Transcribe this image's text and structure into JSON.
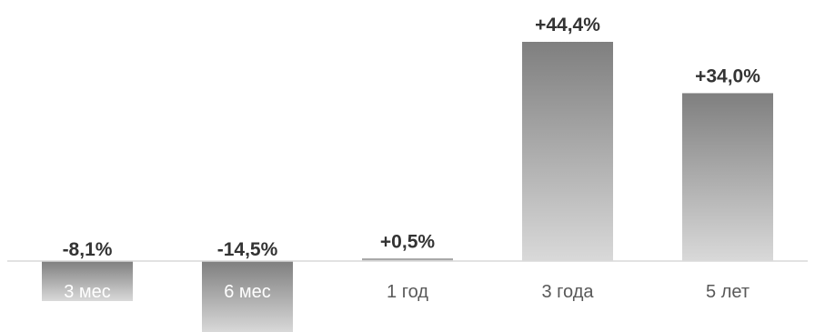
{
  "chart_data": {
    "type": "bar",
    "categories": [
      "3 мес",
      "6 мес",
      "1 год",
      "3 года",
      "5 лет"
    ],
    "values": [
      -8.1,
      -14.5,
      0.5,
      44.4,
      34.0
    ],
    "value_labels": [
      "-8,1%",
      "-14,5%",
      "+0,5%",
      "+44,4%",
      "+34,0%"
    ],
    "title": "",
    "xlabel": "",
    "ylabel": "",
    "ylim": [
      -14.5,
      44.4
    ],
    "grid": false,
    "legend": "none",
    "colors": {
      "bar_top": "#7f7f7f",
      "bar_bottom": "#d9d9d9",
      "axis": "#d9d9d9",
      "value_text": "#333333",
      "category_text": "#595959"
    }
  }
}
